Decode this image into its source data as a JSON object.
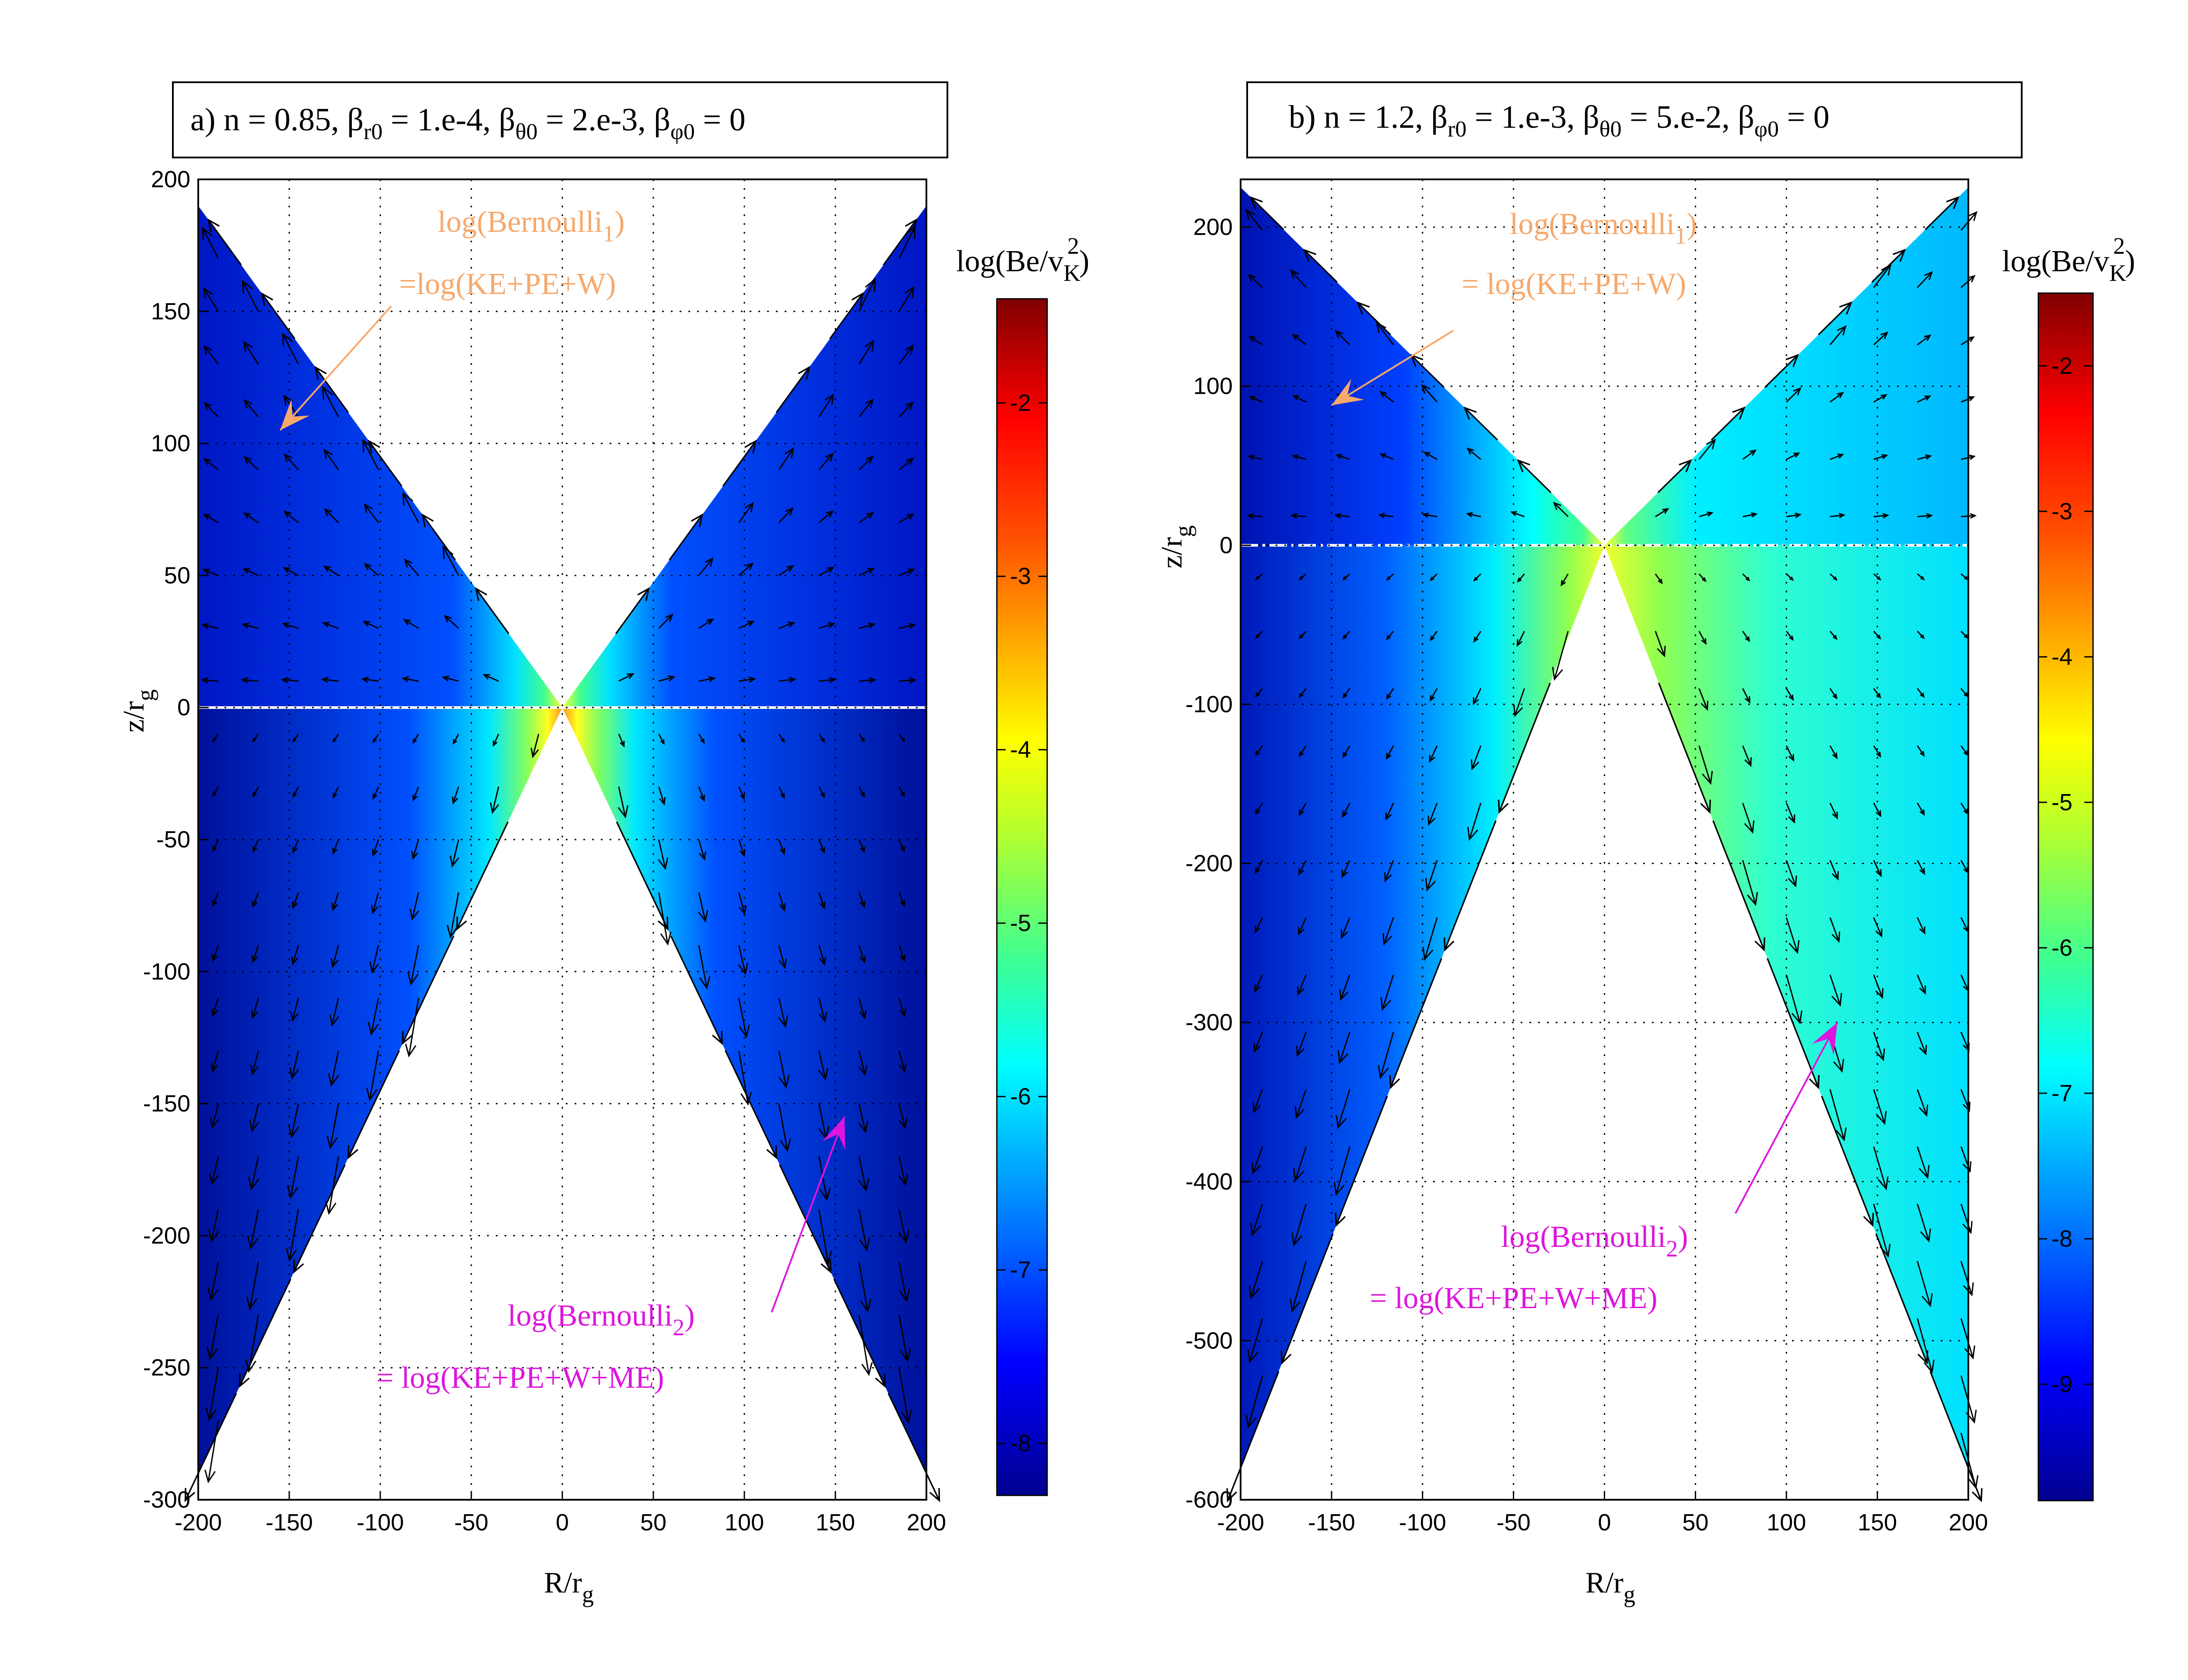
{
  "colors": {
    "orange": "#f7a86b",
    "magenta": "#dd16dd"
  },
  "chart_data": [
    {
      "type": "heatmap",
      "panel": "a",
      "title": "a) n = 0.85, β_r0 = 1.e-4, β_θ0 = 2.e-3, β_φ0 = 0",
      "title_parts": {
        "pre": "a) n = 0.85, β",
        "s1": "r0",
        "m1": " = 1.e-4, β",
        "s2": "θ0",
        "m2": " = 2.e-3, β",
        "s3": "φ0",
        "post": " = 0"
      },
      "xlabel": "R/r_g",
      "xlabel_main": "R/r",
      "xlabel_sub": "g",
      "ylabel": "z/r_g",
      "ylabel_main": "z/r",
      "ylabel_sub": "g",
      "xlim": [
        -200,
        200
      ],
      "ylim": [
        -300,
        200
      ],
      "xticks": [
        -200,
        -150,
        -100,
        -50,
        0,
        50,
        100,
        150,
        200
      ],
      "yticks": [
        -300,
        -250,
        -200,
        -150,
        -100,
        -50,
        0,
        50,
        100,
        150,
        200
      ],
      "xtick_labels": [
        "-200",
        "-150",
        "-100",
        "-50",
        "0",
        "50",
        "100",
        "150",
        "200"
      ],
      "ytick_labels": [
        "-300",
        "-250",
        "-200",
        "-150",
        "-100",
        "-50",
        "0",
        "50",
        "100",
        "150",
        "200"
      ],
      "colorbar": {
        "label": "log(Be/v_K^2)",
        "label_main": "log(Be/v",
        "label_sub": "K",
        "label_sup": "2",
        "label_close": ")",
        "range": [
          -8.3,
          -1.4
        ],
        "ticks": [
          -8,
          -7,
          -6,
          -5,
          -4,
          -3,
          -2
        ],
        "tick_labels": [
          "-8",
          "-7",
          "-6",
          "-5",
          "-4",
          "-3",
          "-2"
        ]
      },
      "wedges": {
        "upper_edge_z_at_R200": 190,
        "lower_edge_z_at_R200": -290
      },
      "annotations": [
        {
          "id": "bernoulli1",
          "color": "orange",
          "line1_main": "log(Bernoulli",
          "line1_sub": "1",
          "line1_close": ")",
          "line2": "=log(KE+PE+W)",
          "arrow_tip": [
            -155,
            105
          ],
          "arrow_tail": [
            -94,
            152
          ]
        },
        {
          "id": "bernoulli2",
          "color": "magenta",
          "line1_main": "log(Bernoulli",
          "line1_sub": "2",
          "line1_close": ")",
          "line2": "= log(KE+PE+W+ME)",
          "arrow_tip": [
            155,
            -155
          ],
          "arrow_tail": [
            115,
            -229
          ]
        }
      ]
    },
    {
      "type": "heatmap",
      "panel": "b",
      "title": "b) n = 1.2, β_r0 = 1.e-3, β_θ0 = 5.e-2, β_φ0 = 0",
      "title_parts": {
        "pre": "b) n = 1.2, β",
        "s1": "r0",
        "m1": " = 1.e-3, β",
        "s2": "θ0",
        "m2": " = 5.e-2, β",
        "s3": "φ0",
        "post": " = 0"
      },
      "xlabel": "R/r_g",
      "xlabel_main": "R/r",
      "xlabel_sub": "g",
      "ylabel": "z/r_g",
      "ylabel_main": "z/r",
      "ylabel_sub": "g",
      "xlim": [
        -200,
        200
      ],
      "ylim": [
        -600,
        230
      ],
      "xticks": [
        -200,
        -150,
        -100,
        -50,
        0,
        50,
        100,
        150,
        200
      ],
      "yticks": [
        -600,
        -500,
        -400,
        -300,
        -200,
        -100,
        0,
        100,
        200
      ],
      "xtick_labels": [
        "-200",
        "-150",
        "-100",
        "-50",
        "0",
        "50",
        "100",
        "150",
        "200"
      ],
      "ytick_labels": [
        "-600",
        "-500",
        "-400",
        "-300",
        "-200",
        "-100",
        "0",
        "100",
        "200"
      ],
      "colorbar": {
        "label": "log(Be/v_K^2)",
        "label_main": "log(Be/v",
        "label_sub": "K",
        "label_sup": "2",
        "label_close": ")",
        "range": [
          -9.8,
          -1.5
        ],
        "ticks": [
          -9,
          -8,
          -7,
          -6,
          -5,
          -4,
          -3,
          -2
        ],
        "tick_labels": [
          "-9",
          "-8",
          "-7",
          "-6",
          "-5",
          "-4",
          "-3",
          "-2"
        ]
      },
      "wedges": {
        "upper_edge_z_at_R200": 225,
        "lower_edge_z_at_R200": -580
      },
      "annotations": [
        {
          "id": "bernoulli1",
          "color": "orange",
          "line1_main": "log(Bernoulli",
          "line1_sub": "1",
          "line1_close": ")",
          "line2": "= log(KE+PE+W)",
          "arrow_tip": [
            -150,
            88
          ],
          "arrow_tail": [
            -83,
            135
          ]
        },
        {
          "id": "bernoulli2",
          "color": "magenta",
          "line1_main": "log(Bernoulli",
          "line1_sub": "2",
          "line1_close": ")",
          "line2": "= log(KE+PE+W+ME)",
          "arrow_tip": [
            128,
            -300
          ],
          "arrow_tail": [
            72,
            -420
          ]
        }
      ]
    }
  ]
}
